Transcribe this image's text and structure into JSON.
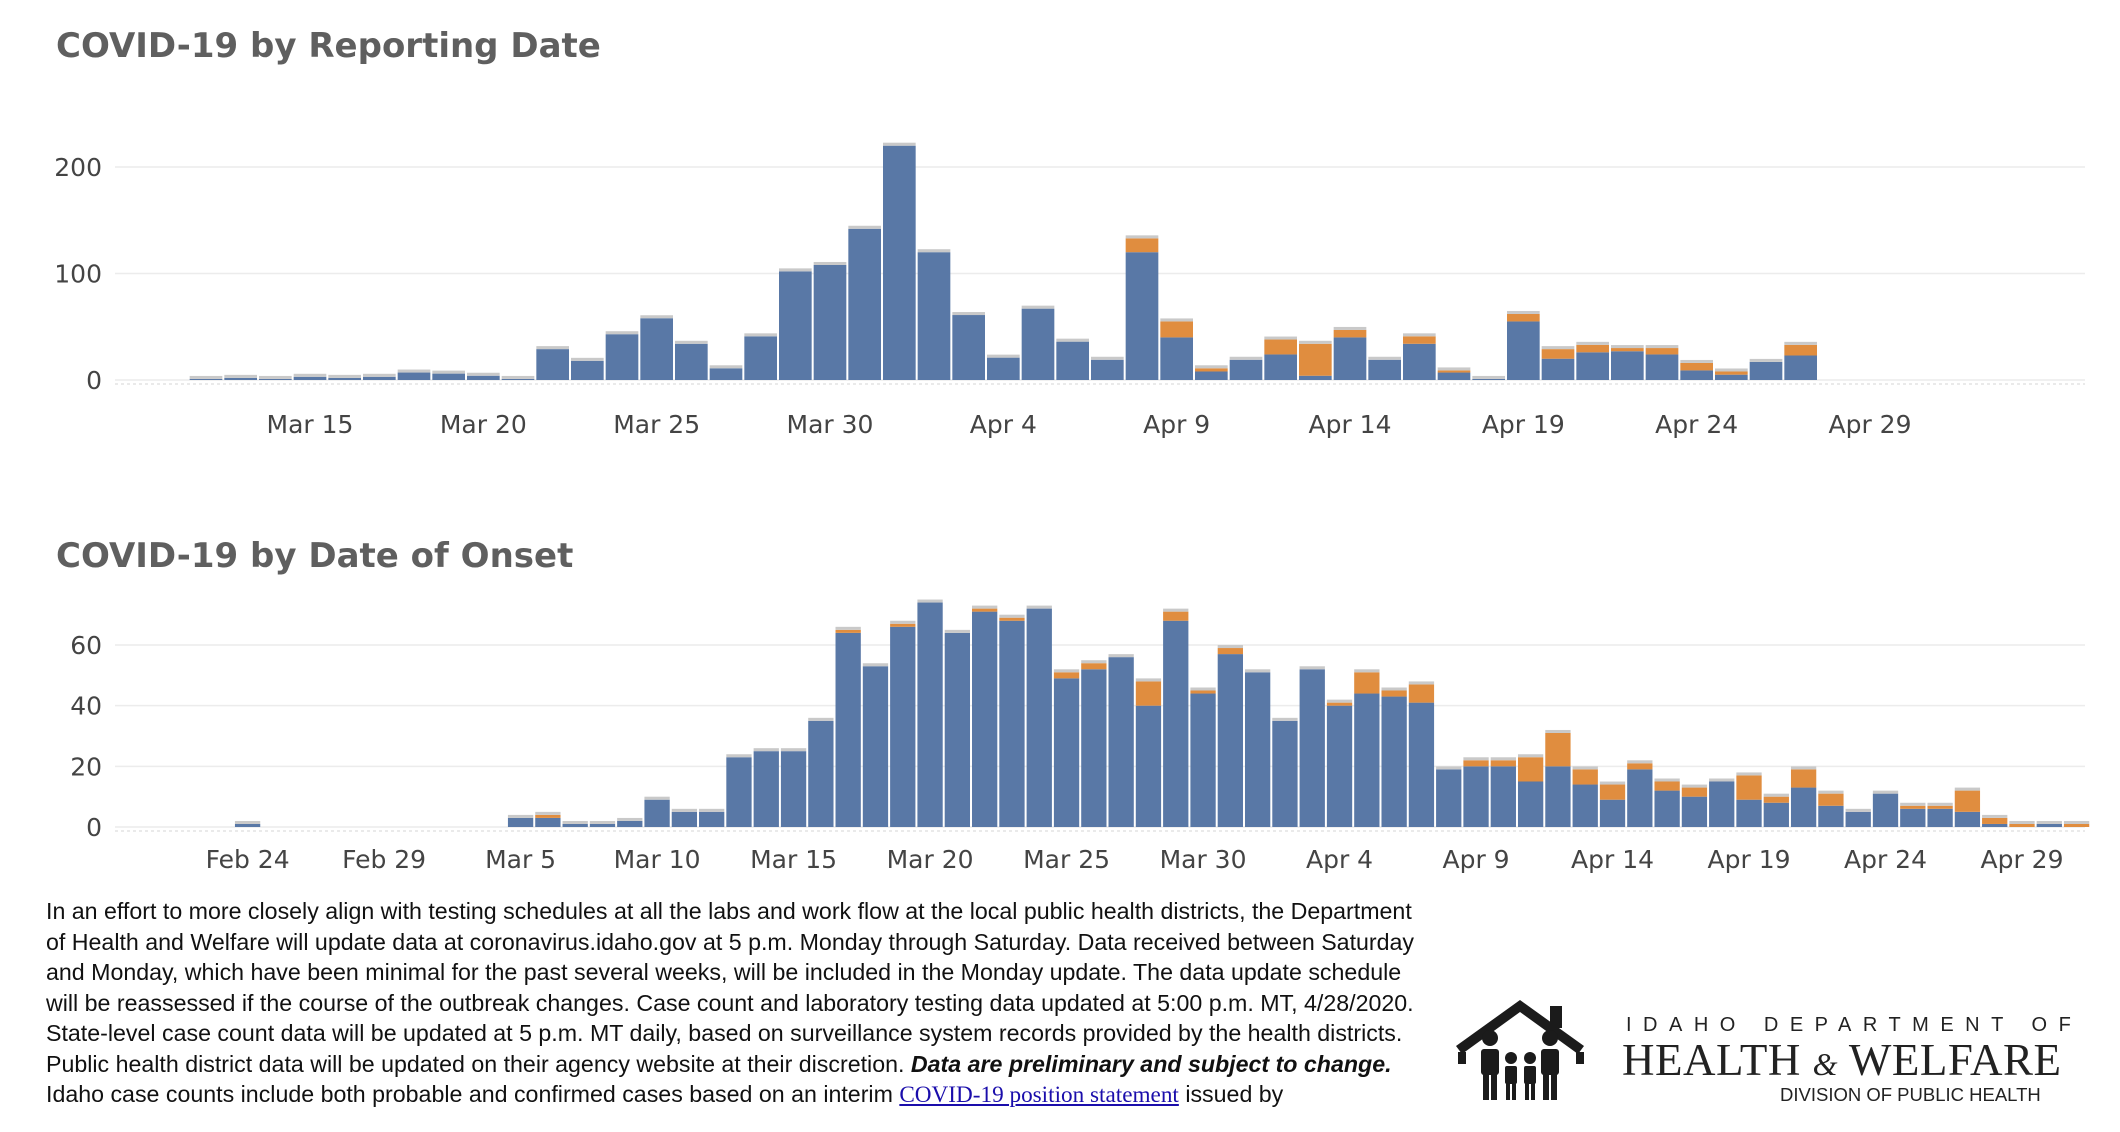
{
  "chart_data": [
    {
      "type": "bar",
      "stacked": true,
      "title": "COVID-19 by Reporting Date",
      "x_start": "2020-03-12",
      "x_end": "2020-04-29",
      "series": [
        {
          "values": [
            1,
            2,
            1,
            3,
            2,
            3,
            7,
            6,
            4,
            1,
            29,
            18,
            43,
            58,
            34,
            11,
            41,
            102,
            108,
            142,
            220,
            120,
            61,
            21,
            67,
            36,
            19,
            120,
            40,
            8,
            19,
            24,
            4,
            40,
            19,
            34,
            7,
            1,
            55,
            20,
            26,
            27,
            24,
            9,
            5,
            17,
            23
          ]
        },
        {
          "values": [
            0,
            0,
            0,
            0,
            0,
            0,
            0,
            0,
            0,
            0,
            0,
            0,
            0,
            0,
            0,
            0,
            0,
            0,
            0,
            0,
            0,
            0,
            0,
            0,
            0,
            0,
            0,
            13,
            15,
            3,
            0,
            14,
            30,
            7,
            0,
            7,
            2,
            0,
            7,
            9,
            7,
            3,
            6,
            7,
            3,
            0,
            10
          ]
        }
      ],
      "y_ticks": [
        0,
        100,
        200
      ],
      "x_tick_labels": [
        "Mar 15",
        "Mar 20",
        "Mar 25",
        "Mar 30",
        "Apr 4",
        "Apr 9",
        "Apr 14",
        "Apr 19",
        "Apr 24",
        "Apr 29"
      ],
      "colors": {
        "confirmed": "#5978a6",
        "probable": "#e08d3f"
      },
      "grid": true
    },
    {
      "type": "bar",
      "stacked": true,
      "title": "COVID-19 by Date of Onset",
      "x_start": "2020-02-22",
      "x_end": "2020-04-29",
      "series": [
        {
          "values": [
            0,
            0,
            1,
            0,
            0,
            0,
            0,
            0,
            0,
            0,
            0,
            0,
            3,
            3,
            1,
            1,
            2,
            9,
            5,
            5,
            23,
            25,
            25,
            35,
            64,
            53,
            66,
            74,
            64,
            71,
            68,
            72,
            49,
            52,
            56,
            40,
            68,
            44,
            57,
            51,
            35,
            52,
            40,
            44,
            43,
            41,
            19,
            20,
            20,
            15,
            20,
            14,
            9,
            19,
            12,
            10,
            15,
            9,
            8,
            13,
            7,
            5,
            11,
            6,
            6,
            5,
            1,
            0,
            1,
            0
          ]
        },
        {
          "values": [
            0,
            0,
            0,
            0,
            0,
            0,
            0,
            0,
            0,
            0,
            0,
            0,
            0,
            1,
            0,
            0,
            0,
            0,
            0,
            0,
            0,
            0,
            0,
            0,
            1,
            0,
            1,
            0,
            0,
            1,
            1,
            0,
            2,
            2,
            0,
            8,
            3,
            1,
            2,
            0,
            0,
            0,
            1,
            7,
            2,
            6,
            0,
            2,
            2,
            8,
            11,
            5,
            5,
            2,
            3,
            3,
            0,
            8,
            2,
            6,
            4,
            0,
            0,
            1,
            1,
            7,
            2,
            1,
            0,
            1
          ]
        }
      ],
      "y_ticks": [
        0,
        20,
        40,
        60
      ],
      "x_tick_labels": [
        "Feb 24",
        "Feb 29",
        "Mar 5",
        "Mar 10",
        "Mar 15",
        "Mar 20",
        "Mar 25",
        "Mar 30",
        "Apr 4",
        "Apr 9",
        "Apr 14",
        "Apr 19",
        "Apr 24",
        "Apr 29"
      ],
      "colors": {
        "confirmed": "#5978a6",
        "probable": "#e08d3f"
      },
      "grid": true
    }
  ],
  "note": {
    "p1": "In an effort to more closely align with testing schedules at all the labs and work flow at the local public health districts, the Department of Health and Welfare will update data at coronavirus.idaho.gov at 5 p.m. Monday through Saturday. Data received between Saturday and Monday, which have been minimal for the past several weeks, will be included in the Monday update. The data update schedule will be reassessed if the course of the outbreak changes. Case count and laboratory testing data updated at 5:00 p.m. MT, 4/28/2020. State-level case count data will be updated at 5 p.m. MT daily, based on surveillance system records provided by the health districts. Public health district data will be updated on their agency website at their discretion.",
    "p1_emphasis": "Data are preliminary and subject to change.",
    "p2_before": "Idaho case counts include both probable and confirmed cases based on an interim",
    "p2_link": "COVID-19 position statement",
    "p2_after": "issued by"
  },
  "logo": {
    "top": "IDAHO DEPARTMENT OF",
    "main": "HEALTH",
    "amp": "&",
    "main2": "WELFARE",
    "sub": "DIVISION OF PUBLIC HEALTH"
  }
}
